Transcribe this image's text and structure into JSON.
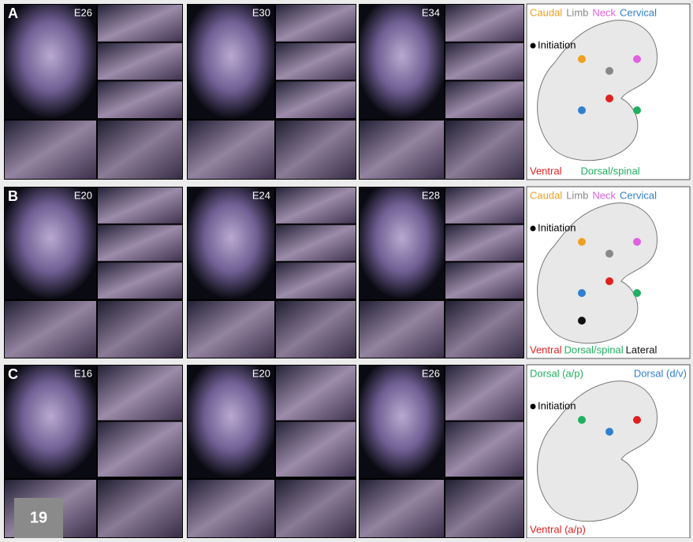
{
  "panels": [
    {
      "label": "A",
      "stages": [
        "E26",
        "E30",
        "E34"
      ],
      "legend_top": [
        {
          "text": "Caudal",
          "color": "#f0a020"
        },
        {
          "text": "Limb",
          "color": "#888888"
        },
        {
          "text": "Neck",
          "color": "#e060e0"
        },
        {
          "text": "Cervical",
          "color": "#3080d0"
        }
      ],
      "initiation": "Initiation",
      "legend_bottom": [
        {
          "text": "Ventral",
          "color": "#e02020"
        },
        {
          "text": "Dorsal/spinal",
          "color": "#20b060"
        }
      ]
    },
    {
      "label": "B",
      "stages": [
        "E20",
        "E24",
        "E28"
      ],
      "legend_top": [
        {
          "text": "Caudal",
          "color": "#f0a020"
        },
        {
          "text": "Limb",
          "color": "#888888"
        },
        {
          "text": "Neck",
          "color": "#e060e0"
        },
        {
          "text": "Cervical",
          "color": "#3080d0"
        }
      ],
      "initiation": "Initiation",
      "legend_bottom": [
        {
          "text": "Ventral",
          "color": "#e02020"
        },
        {
          "text": "Dorsal/spinal",
          "color": "#20b060"
        },
        {
          "text": "Lateral",
          "color": "#111111"
        }
      ]
    },
    {
      "label": "C",
      "stages": [
        "E16",
        "E20",
        "E26"
      ],
      "legend_top": [
        {
          "text": "Dorsal (a/p)",
          "color": "#20b060"
        },
        {
          "text": "Dorsal (d/v)",
          "color": "#3080d0"
        }
      ],
      "initiation": "Initiation",
      "legend_bottom": [
        {
          "text": "Ventral (a/p)",
          "color": "#e02020"
        }
      ]
    }
  ],
  "page_number": "19"
}
